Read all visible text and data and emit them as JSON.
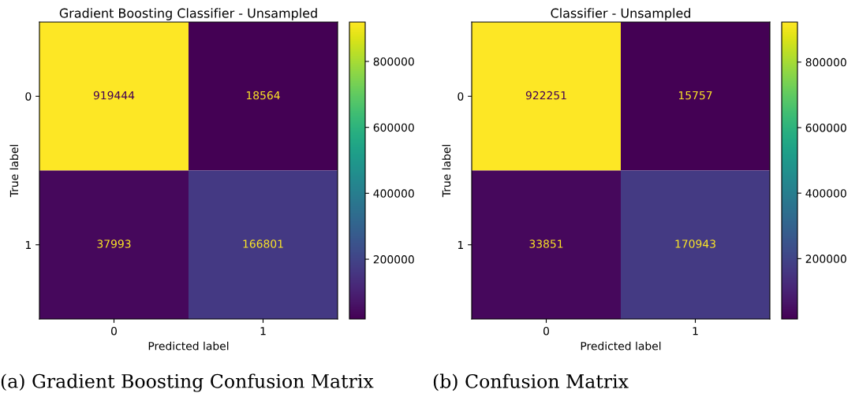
{
  "chart_data": [
    {
      "type": "heatmap",
      "title": "Gradient Boosting Classifier - Unsampled",
      "xlabel": "Predicted label",
      "ylabel": "True label",
      "categories": [
        "0",
        "1"
      ],
      "y_categories": [
        "0",
        "1"
      ],
      "cells": [
        [
          919444,
          18564
        ],
        [
          37993,
          166801
        ]
      ],
      "clim": [
        18564,
        919444
      ],
      "cticks": [
        200000,
        400000,
        600000,
        800000
      ],
      "data_labels": true,
      "annotations": [
        "(a) Gradient Boosting Confusion Matrix"
      ]
    },
    {
      "type": "heatmap",
      "title": "Classifier - Unsampled",
      "xlabel": "Predicted label",
      "ylabel": "True label",
      "categories": [
        "0",
        "1"
      ],
      "y_categories": [
        "0",
        "1"
      ],
      "cells": [
        [
          922251,
          15757
        ],
        [
          33851,
          170943
        ]
      ],
      "clim": [
        15757,
        922251
      ],
      "cticks": [
        200000,
        400000,
        600000,
        800000
      ],
      "data_labels": true,
      "annotations": [
        "(b) Confusion Matrix"
      ]
    }
  ]
}
